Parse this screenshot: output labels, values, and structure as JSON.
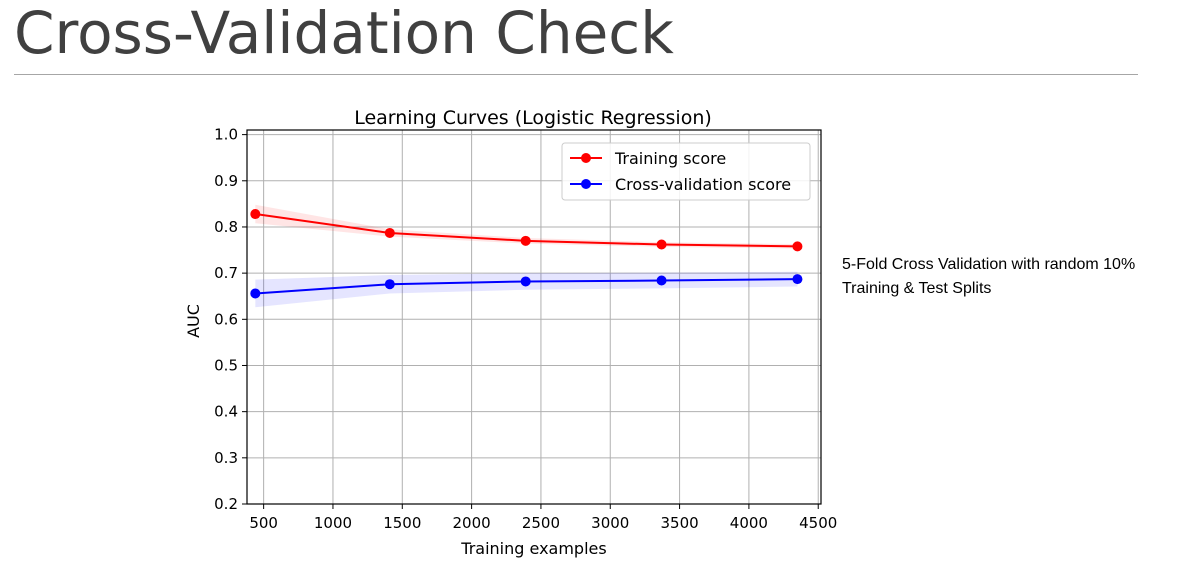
{
  "slide": {
    "title": "Cross-Validation Check"
  },
  "note": {
    "line1": "5-Fold Cross Validation with random 10%",
    "line2": "Training & Test Splits"
  },
  "chart_data": {
    "type": "line",
    "title": "Learning Curves (Logistic Regression)",
    "xlabel": "Training examples",
    "ylabel": "AUC",
    "xlim": [
      380,
      4520
    ],
    "ylim": [
      0.2,
      1.01
    ],
    "xticks": [
      500,
      1000,
      1500,
      2000,
      2500,
      3000,
      3500,
      4000,
      4500
    ],
    "xtick_labels": [
      "500",
      "1000",
      "1500",
      "2000",
      "2500",
      "3000",
      "3500",
      "4000",
      "4500"
    ],
    "yticks": [
      0.2,
      0.3,
      0.4,
      0.5,
      0.6,
      0.7,
      0.8,
      0.9,
      1.0
    ],
    "ytick_labels": [
      "0.2",
      "0.3",
      "0.4",
      "0.5",
      "0.6",
      "0.7",
      "0.8",
      "0.9",
      "1.0"
    ],
    "grid": true,
    "legend_position": "top-right",
    "x": [
      440,
      1410,
      2390,
      3370,
      4350
    ],
    "series": [
      {
        "name": "Training score",
        "color": "#ff0000",
        "values": [
          0.828,
          0.787,
          0.77,
          0.762,
          0.758
        ],
        "band_lower": [
          0.808,
          0.779,
          0.764,
          0.757,
          0.753
        ],
        "band_upper": [
          0.848,
          0.795,
          0.776,
          0.767,
          0.763
        ]
      },
      {
        "name": "Cross-validation score",
        "color": "#0000ff",
        "values": [
          0.656,
          0.676,
          0.682,
          0.684,
          0.687
        ],
        "band_lower": [
          0.626,
          0.656,
          0.664,
          0.667,
          0.671
        ],
        "band_upper": [
          0.686,
          0.696,
          0.7,
          0.701,
          0.703
        ]
      }
    ]
  }
}
